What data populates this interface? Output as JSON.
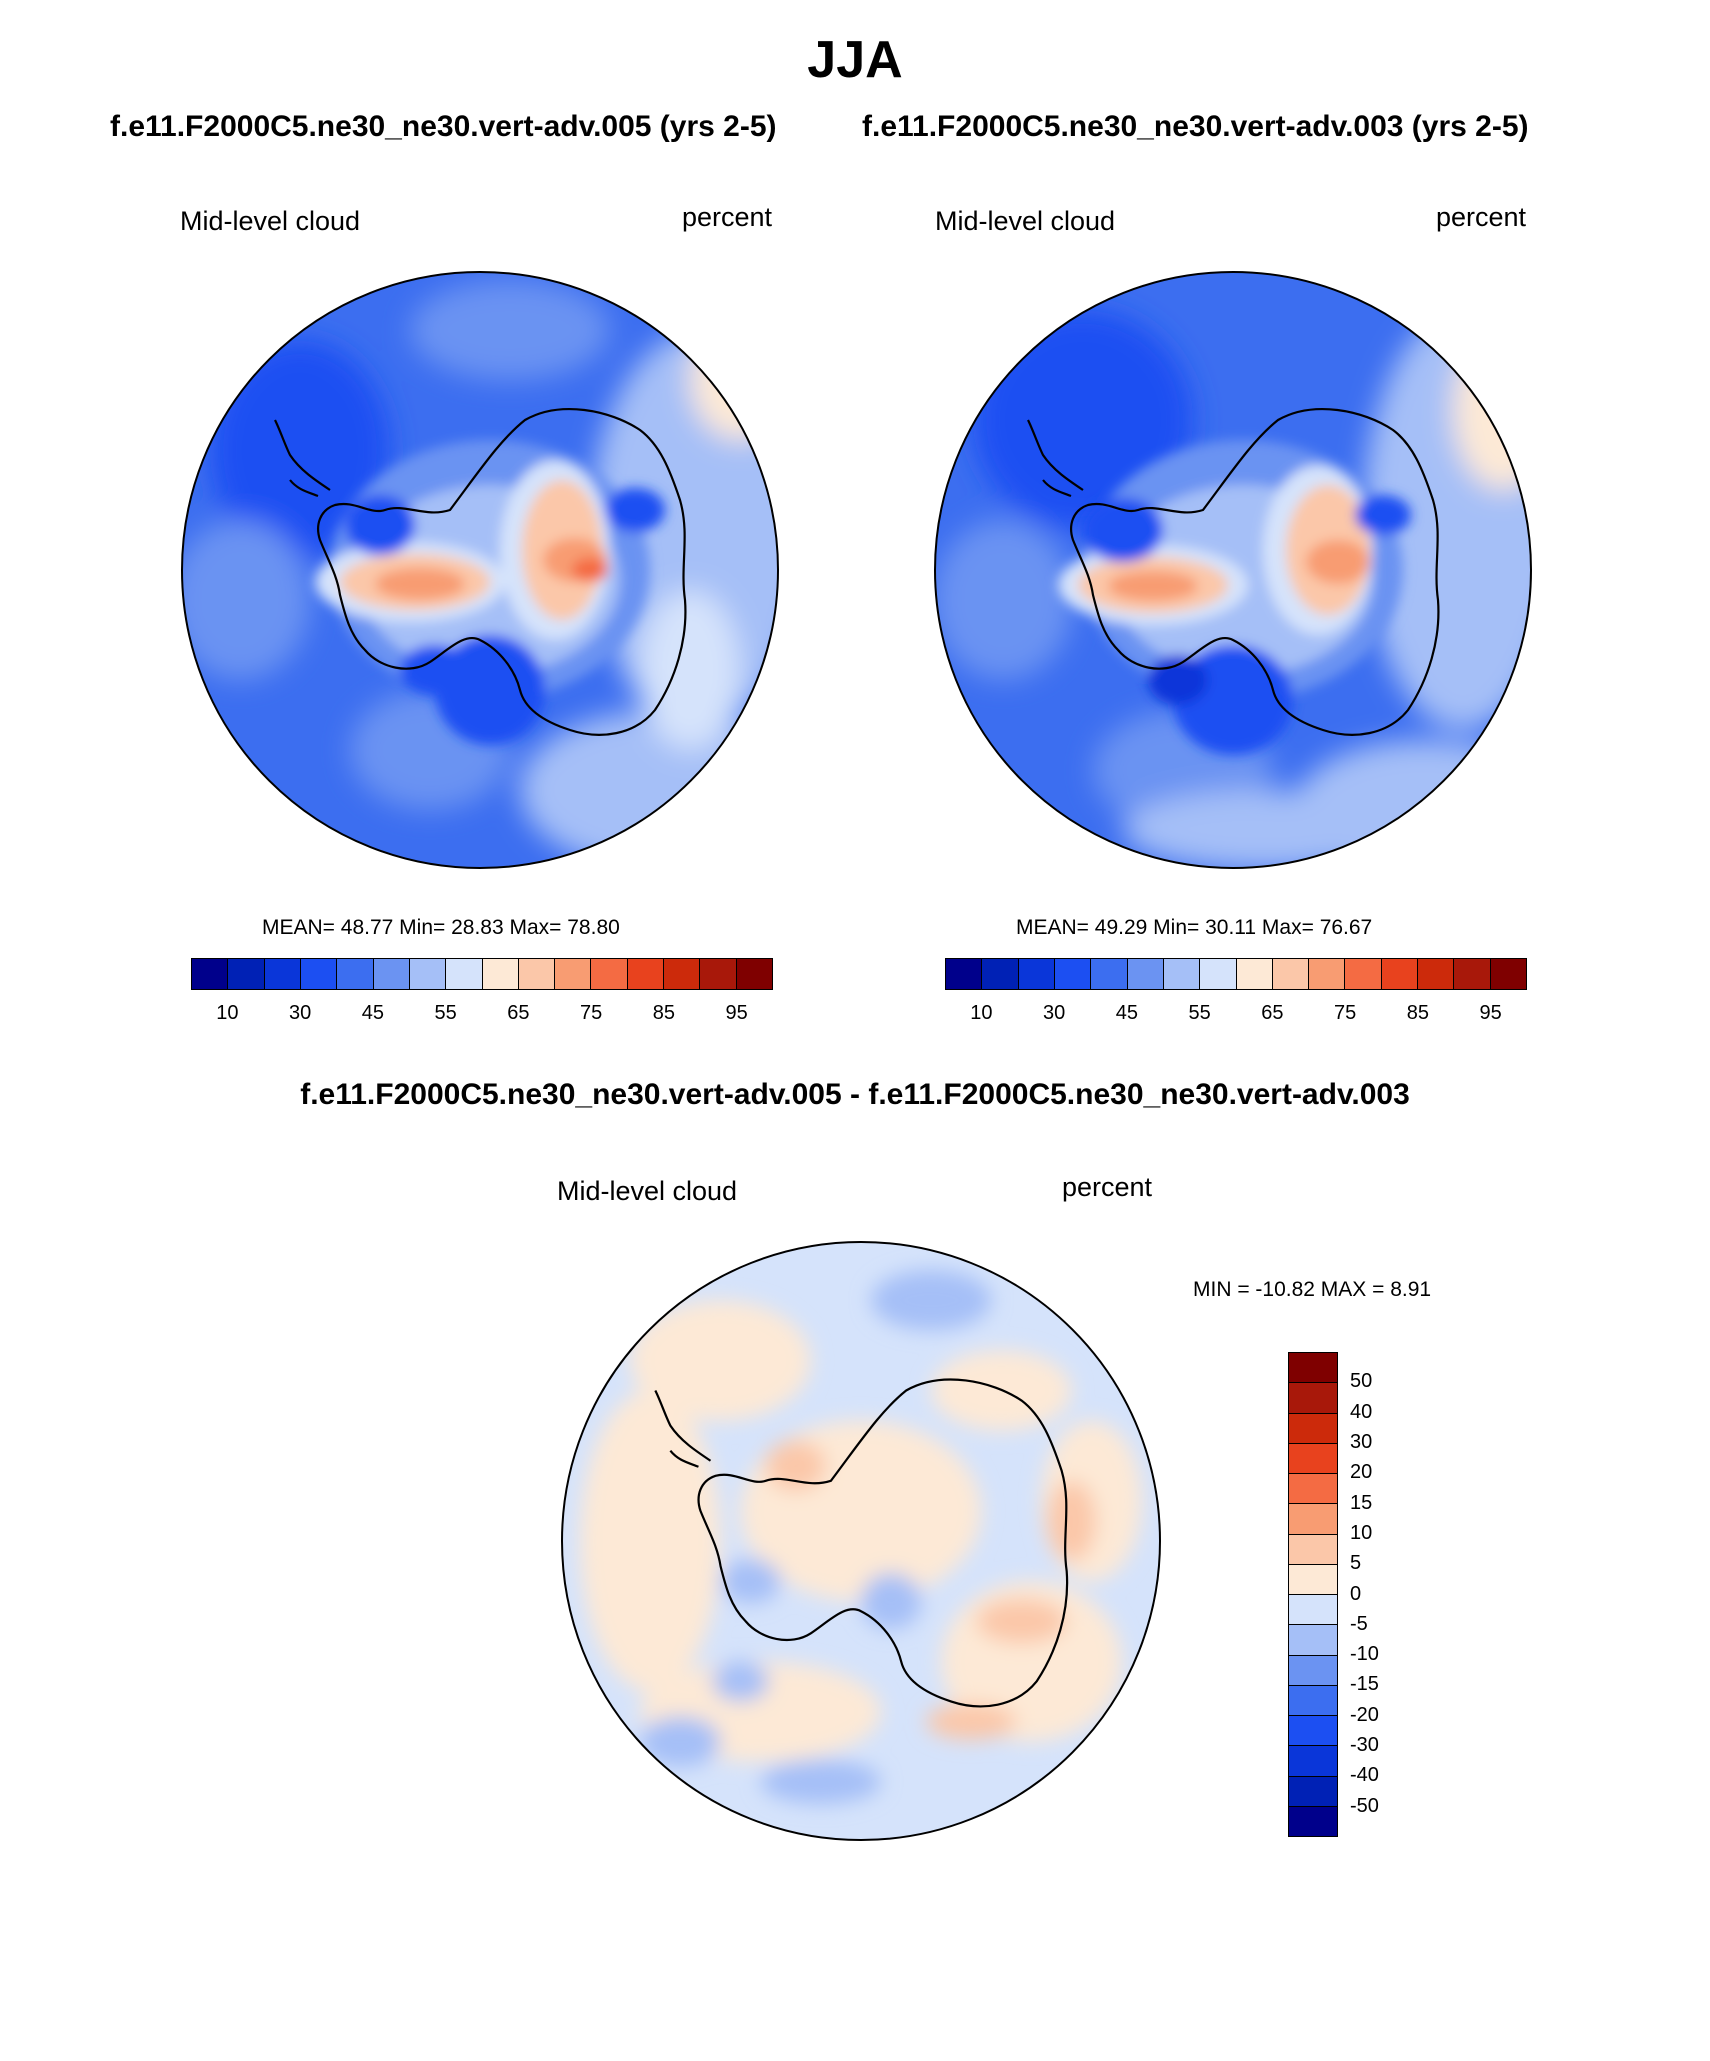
{
  "header": {
    "title": "JJA",
    "case_left": "f.e11.F2000C5.ne30_ne30.vert-adv.005 (yrs 2-5)",
    "case_right": "f.e11.F2000C5.ne30_ne30.vert-adv.003 (yrs 2-5)",
    "diff_title": "f.e11.F2000C5.ne30_ne30.vert-adv.005 - f.e11.F2000C5.ne30_ne30.vert-adv.003"
  },
  "panels": {
    "left": {
      "variable": "Mid-level cloud",
      "units": "percent",
      "stats": "MEAN=  48.77  Min=  28.83  Max=  78.80",
      "colorbar_ticks": [
        "10",
        "30",
        "45",
        "55",
        "65",
        "75",
        "85",
        "95"
      ]
    },
    "right": {
      "variable": "Mid-level cloud",
      "units": "percent",
      "stats": "MEAN=  49.29  Min=  30.11  Max=  76.67",
      "colorbar_ticks": [
        "10",
        "30",
        "45",
        "55",
        "65",
        "75",
        "85",
        "95"
      ]
    },
    "diff": {
      "variable": "Mid-level cloud",
      "units": "percent",
      "stats": "MIN = -10.82 MAX =   8.91",
      "colorbar_ticks": [
        "50",
        "40",
        "30",
        "20",
        "15",
        "10",
        "5",
        "0",
        "-5",
        "-10",
        "-15",
        "-20",
        "-30",
        "-40",
        "-50"
      ]
    }
  },
  "palettes": {
    "field": [
      "#00008b",
      "#0021b5",
      "#0a36d9",
      "#1c4ff2",
      "#3c6ef0",
      "#6b93f2",
      "#a5bff7",
      "#d5e3fb",
      "#fde9d6",
      "#fbc7a9",
      "#f89c72",
      "#f46b43",
      "#e8421e",
      "#cc2a0b",
      "#a8180a",
      "#7f0000"
    ],
    "diff": [
      "#7f0000",
      "#a8180a",
      "#cc2a0b",
      "#e8421e",
      "#f46b43",
      "#f89c72",
      "#fbc7a9",
      "#fde9d6",
      "#d5e3fb",
      "#a5bff7",
      "#6b93f2",
      "#3c6ef0",
      "#1c4ff2",
      "#0a36d9",
      "#0021b5",
      "#00008b"
    ]
  }
}
